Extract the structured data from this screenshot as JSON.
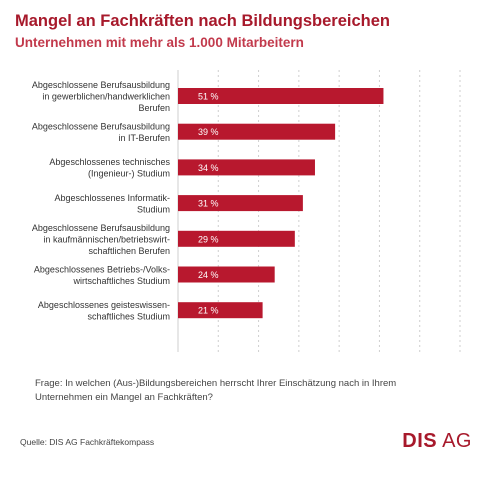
{
  "header": {
    "title": "Mangel an Fachkräften nach Bildungsbereichen",
    "subtitle": "Unternehmen mit mehr als 1.000 Mitarbeitern"
  },
  "chart_data": {
    "type": "bar",
    "orientation": "horizontal",
    "categories": [
      [
        "Abgeschlossene Berufsausbildung",
        "in gewerblichen/handwerklichen",
        "Berufen"
      ],
      [
        "Abgeschlossene Berufsausbildung",
        "in IT-Berufen"
      ],
      [
        "Abgeschlossenes technisches",
        "(Ingenieur-) Studium"
      ],
      [
        "Abgeschlossenes Informatik-",
        "Studium"
      ],
      [
        "Abgeschlossene Berufsausbildung",
        "in kaufmännischen/betriebswirt-",
        "schaftlichen Berufen"
      ],
      [
        "Abgeschlossenes Betriebs-/Volks-",
        "wirtschaftliches Studium"
      ],
      [
        "Abgeschlossenes geisteswissen-",
        "schaftliches Studium"
      ]
    ],
    "values": [
      51,
      39,
      34,
      31,
      29,
      24,
      21
    ],
    "data_labels": [
      "51 %",
      "39 %",
      "34 %",
      "31 %",
      "29 %",
      "24 %",
      "21 %"
    ],
    "xlim": [
      0,
      70
    ],
    "grid": "vertical dashed",
    "bar_color": "#b8182e"
  },
  "footer": {
    "note": "Frage: In welchen (Aus-)Bildungsbereichen herrscht Ihrer Einschätzung nach in Ihrem Unternehmen ein Mangel an Fachkräften?",
    "source": "Quelle:  DIS AG Fachkräftekompass",
    "logo_bold": "DIS",
    "logo_rest": " AG"
  }
}
